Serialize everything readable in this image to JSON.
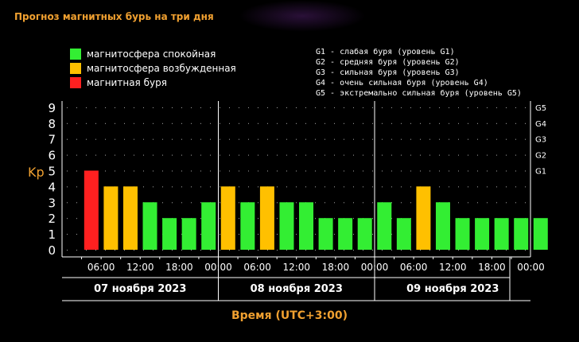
{
  "title": "Прогноз магнитных бурь на три дня",
  "legend": [
    {
      "label": "магнитосфера спокойная",
      "color": "#33ee33"
    },
    {
      "label": "магнитосфера возбужденная",
      "color": "#ffc000"
    },
    {
      "label": "магнитная буря",
      "color": "#ff2020"
    }
  ],
  "storm_levels": [
    "G1 - слабая буря (уровень G1)",
    "G2 - средняя буря (уровень G2)",
    "G3 - сильная буря (уровень G3)",
    "G4 - очень сильная буря (уровень G4)",
    "G5 - экстремально сильная буря (уровень G5)"
  ],
  "colors": {
    "quiet": "#33ee33",
    "active": "#ffc000",
    "storm": "#ff2020",
    "accent": "#f0a030"
  },
  "chart_data": {
    "type": "bar",
    "title": "Прогноз магнитных бурь на три дня",
    "ylabel": "Kp",
    "xlabel": "Время (UTC+3:00)",
    "ylim": [
      0,
      9
    ],
    "y_ticks": [
      "0",
      "1",
      "2",
      "3",
      "4",
      "5",
      "6",
      "7",
      "8",
      "9"
    ],
    "g_ticks": [
      {
        "label": "G1",
        "kp": 5
      },
      {
        "label": "G2",
        "kp": 6
      },
      {
        "label": "G3",
        "kp": 7
      },
      {
        "label": "G4",
        "kp": 8
      },
      {
        "label": "G5",
        "kp": 9
      }
    ],
    "x_ticks": [
      "06:00",
      "12:00",
      "18:00",
      "00:00",
      "06:00",
      "12:00",
      "18:00",
      "00:00",
      "06:00",
      "12:00",
      "18:00",
      "00:00"
    ],
    "days": [
      "07 ноября 2023",
      "08 ноября 2023",
      "09 ноября 2023"
    ],
    "values": [
      5,
      4,
      4,
      3,
      2,
      2,
      3,
      4,
      3,
      4,
      3,
      3,
      2,
      2,
      2,
      3,
      2,
      4,
      3,
      2,
      2,
      2,
      2,
      2
    ],
    "grid": true
  }
}
